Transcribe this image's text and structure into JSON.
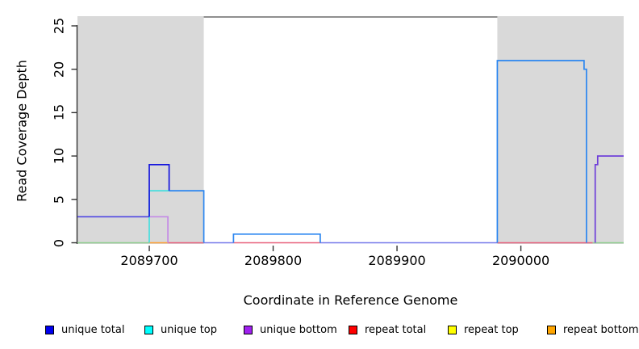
{
  "chart_data": {
    "type": "line",
    "title": "",
    "xlabel": "Coordinate in Reference Genome",
    "ylabel": "Read Coverage Depth",
    "xlim": [
      2089642,
      2090083
    ],
    "ylim": [
      0,
      26
    ],
    "x_ticks": [
      2089700,
      2089800,
      2089900,
      2090000
    ],
    "y_ticks": [
      0,
      5,
      10,
      15,
      20,
      25
    ],
    "grid": false,
    "legend_position": "bottom",
    "background_color": "#ffffff",
    "repeat_region_shading": {
      "color": "#d9d9d9",
      "regions": [
        [
          2089642,
          2089744
        ],
        [
          2089981,
          2090083
        ]
      ]
    },
    "series": [
      {
        "name": "unique total",
        "color": "#0000EE",
        "steps": [
          [
            2089642,
            3
          ],
          [
            2089700,
            9
          ],
          [
            2089716,
            6
          ],
          [
            2089744,
            0
          ],
          [
            2089768,
            1
          ],
          [
            2089838,
            0
          ],
          [
            2089981,
            21
          ],
          [
            2090051,
            20
          ],
          [
            2090053,
            0
          ],
          [
            2090060,
            10
          ],
          [
            2090083,
            10
          ]
        ]
      },
      {
        "name": "unique top",
        "color": "#00FFFF",
        "steps": [
          [
            2089642,
            0
          ],
          [
            2089700,
            6
          ],
          [
            2089744,
            0
          ],
          [
            2089768,
            1
          ],
          [
            2089838,
            0
          ],
          [
            2089981,
            21
          ],
          [
            2090051,
            20
          ],
          [
            2090053,
            0
          ],
          [
            2090083,
            0
          ]
        ]
      },
      {
        "name": "unique bottom",
        "color": "#A020F0",
        "steps": [
          [
            2089642,
            3
          ],
          [
            2089715,
            0
          ],
          [
            2090060,
            9
          ],
          [
            2090062,
            10
          ],
          [
            2090083,
            10
          ]
        ]
      },
      {
        "name": "repeat total",
        "color": "#FF0000",
        "steps": [
          [
            2089642,
            0
          ],
          [
            2090083,
            0
          ]
        ]
      },
      {
        "name": "repeat top",
        "color": "#FFFF00",
        "steps": [
          [
            2089642,
            0
          ],
          [
            2090083,
            0
          ]
        ]
      },
      {
        "name": "repeat bottom",
        "color": "#FFA500",
        "steps": [
          [
            2089642,
            0
          ],
          [
            2090083,
            0
          ]
        ]
      }
    ],
    "rendered_lines": {
      "top_border_color": "#8f8f8f",
      "axis_color": "#333333",
      "zero_segments": [
        {
          "color": "#8fcf8f",
          "from": 2089642,
          "to": 2089700
        },
        {
          "color": "#ffa033",
          "from": 2089700,
          "to": 2089715
        },
        {
          "color": "#e8617c",
          "from": 2089715,
          "to": 2089744
        },
        {
          "color": "#7679ea",
          "from": 2089744,
          "to": 2089768
        },
        {
          "color": "#e8617c",
          "from": 2089768,
          "to": 2089838
        },
        {
          "color": "#7679ea",
          "from": 2089838,
          "to": 2089981
        },
        {
          "color": "#e8617c",
          "from": 2089981,
          "to": 2090058
        },
        {
          "color": "#8fcf8f",
          "from": 2090058,
          "to": 2090083
        }
      ],
      "step_lines": [
        {
          "color": "#c48ae6",
          "points": [
            [
              2089700,
              3
            ],
            [
              2089715,
              3
            ],
            [
              2089715,
              0
            ]
          ]
        },
        {
          "color": "#45dede",
          "points": [
            [
              2089700,
              0
            ],
            [
              2089700,
              6
            ],
            [
              2089716,
              6
            ]
          ]
        },
        {
          "color": "#4f46e2",
          "points": [
            [
              2089642,
              3
            ],
            [
              2089700,
              3
            ]
          ]
        },
        {
          "color": "#1414dd",
          "points": [
            [
              2089700,
              3
            ],
            [
              2089700,
              9
            ],
            [
              2089716,
              9
            ],
            [
              2089716,
              6
            ]
          ]
        },
        {
          "color": "#2b86f0",
          "points": [
            [
              2089716,
              6
            ],
            [
              2089744,
              6
            ],
            [
              2089744,
              0
            ]
          ]
        },
        {
          "color": "#2b86f0",
          "points": [
            [
              2089768,
              0
            ],
            [
              2089768,
              1
            ],
            [
              2089838,
              1
            ],
            [
              2089838,
              0
            ]
          ]
        },
        {
          "color": "#2b86f0",
          "points": [
            [
              2089981,
              0
            ],
            [
              2089981,
              21
            ],
            [
              2090051,
              21
            ],
            [
              2090051,
              20
            ],
            [
              2090053,
              20
            ],
            [
              2090053,
              0
            ]
          ]
        },
        {
          "color": "#6f3fd9",
          "points": [
            [
              2090060,
              0
            ],
            [
              2090060,
              9
            ],
            [
              2090062,
              9
            ],
            [
              2090062,
              10
            ],
            [
              2090083,
              10
            ]
          ]
        }
      ]
    }
  }
}
